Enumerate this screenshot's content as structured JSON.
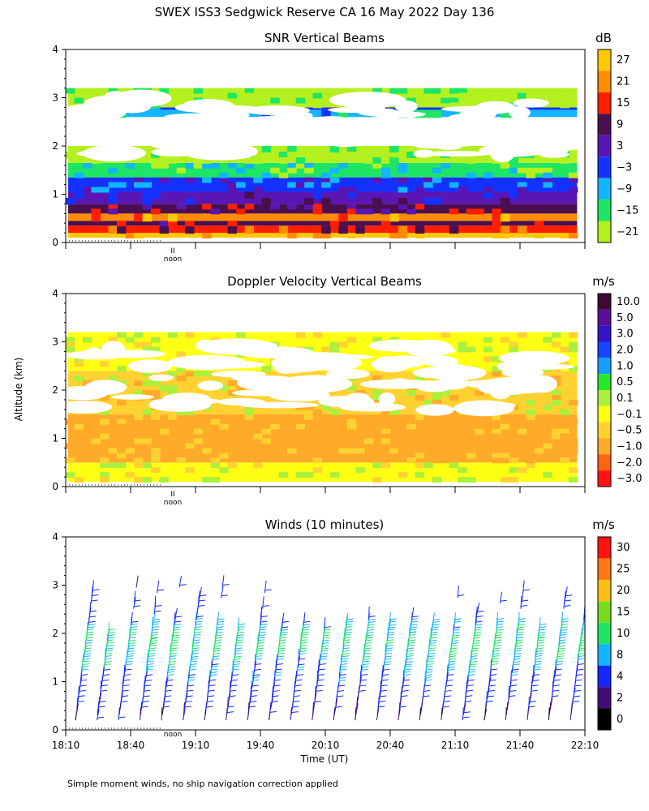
{
  "figure": {
    "title": "SWEX ISS3 Sedgwick Reserve CA  16 May 2022 Day 136",
    "ylabel": "Altitude (km)",
    "xlabel": "Time (UT)",
    "footnote": "Simple moment winds, no ship navigation correction applied",
    "noon_label": "noon",
    "x_tick_labels": [
      "18:10",
      "18:40",
      "19:10",
      "19:40",
      "20:10",
      "20:40",
      "21:10",
      "21:40",
      "22:10"
    ],
    "y_tick_labels": [
      "0",
      "1",
      "2",
      "3",
      "4"
    ]
  },
  "chart_data": [
    {
      "type": "heatmap",
      "title": "SNR Vertical Beams",
      "unit": "dB",
      "x_range": [
        "18:10",
        "22:10"
      ],
      "ylim": [
        0,
        4
      ],
      "colorbar": {
        "labels": [
          "27",
          "21",
          "15",
          "9",
          "3",
          "−3",
          "−9",
          "−15",
          "−21"
        ],
        "colors": [
          "#ffc800",
          "#ff8c00",
          "#ff1e00",
          "#4b0f50",
          "#5a16b4",
          "#1432ff",
          "#14b4ff",
          "#1ee664",
          "#b4f01e"
        ]
      },
      "layers": [
        {
          "alt_km": [
            0.1,
            0.2
          ],
          "snr_db": 24
        },
        {
          "alt_km": [
            0.2,
            0.35
          ],
          "snr_db": 16
        },
        {
          "alt_km": [
            0.35,
            0.45
          ],
          "snr_db": 10
        },
        {
          "alt_km": [
            0.45,
            0.6
          ],
          "snr_db": 18
        },
        {
          "alt_km": [
            0.6,
            0.8
          ],
          "snr_db": 6
        },
        {
          "alt_km": [
            0.8,
            1.05
          ],
          "snr_db": 0
        },
        {
          "alt_km": [
            1.05,
            1.35
          ],
          "snr_db": -6
        },
        {
          "alt_km": [
            1.35,
            1.65
          ],
          "snr_db": -14
        },
        {
          "alt_km": [
            1.65,
            2.0
          ],
          "snr_db": -19
        },
        {
          "alt_km": [
            2.6,
            2.75
          ],
          "snr_db": -12
        },
        {
          "alt_km": [
            2.75,
            2.8
          ],
          "snr_db": -3
        },
        {
          "alt_km": [
            2.8,
            3.2
          ],
          "snr_db": -19
        }
      ]
    },
    {
      "type": "heatmap",
      "title": "Doppler Velocity Vertical Beams",
      "unit": "m/s",
      "x_range": [
        "18:10",
        "22:10"
      ],
      "ylim": [
        0,
        4
      ],
      "colorbar": {
        "labels": [
          "10.0",
          "5.0",
          "3.0",
          "2.0",
          "1.0",
          "0.5",
          "0.1",
          "−0.1",
          "−0.5",
          "−1.0",
          "−2.0",
          "−3.0"
        ],
        "colors": [
          "#3c0a32",
          "#5a0f96",
          "#3214c8",
          "#1446ff",
          "#14a0ff",
          "#28e628",
          "#aaf03c",
          "#ffff14",
          "#ffd232",
          "#ffaa28",
          "#ff6414",
          "#ff1414"
        ]
      },
      "layers": [
        {
          "alt_km": [
            0.1,
            0.5
          ],
          "w_ms": -0.05
        },
        {
          "alt_km": [
            0.5,
            1.5
          ],
          "w_ms": -0.6
        },
        {
          "alt_km": [
            1.5,
            2.4
          ],
          "w_ms": -0.3
        },
        {
          "alt_km": [
            2.4,
            3.2
          ],
          "w_ms": -0.05
        }
      ]
    },
    {
      "type": "wind_barbs",
      "title": "Winds (10 minutes)",
      "unit": "m/s",
      "x_range": [
        "18:10",
        "22:10"
      ],
      "ylim": [
        0,
        4
      ],
      "colorbar": {
        "labels": [
          "30",
          "25",
          "20",
          "15",
          "10",
          "8",
          "4",
          "2",
          "0"
        ],
        "colors": [
          "#ff1414",
          "#ff7814",
          "#ffbe14",
          "#78dc1e",
          "#1ee664",
          "#14b4ff",
          "#1428ff",
          "#460a78",
          "#000000"
        ]
      },
      "profile": [
        {
          "alt_km": 0.3,
          "speed_ms": 3
        },
        {
          "alt_km": 0.8,
          "speed_ms": 6
        },
        {
          "alt_km": 1.3,
          "speed_ms": 9
        },
        {
          "alt_km": 1.8,
          "speed_ms": 11
        },
        {
          "alt_km": 2.3,
          "speed_ms": 7
        },
        {
          "alt_km": 3.0,
          "speed_ms": 5
        }
      ]
    }
  ]
}
